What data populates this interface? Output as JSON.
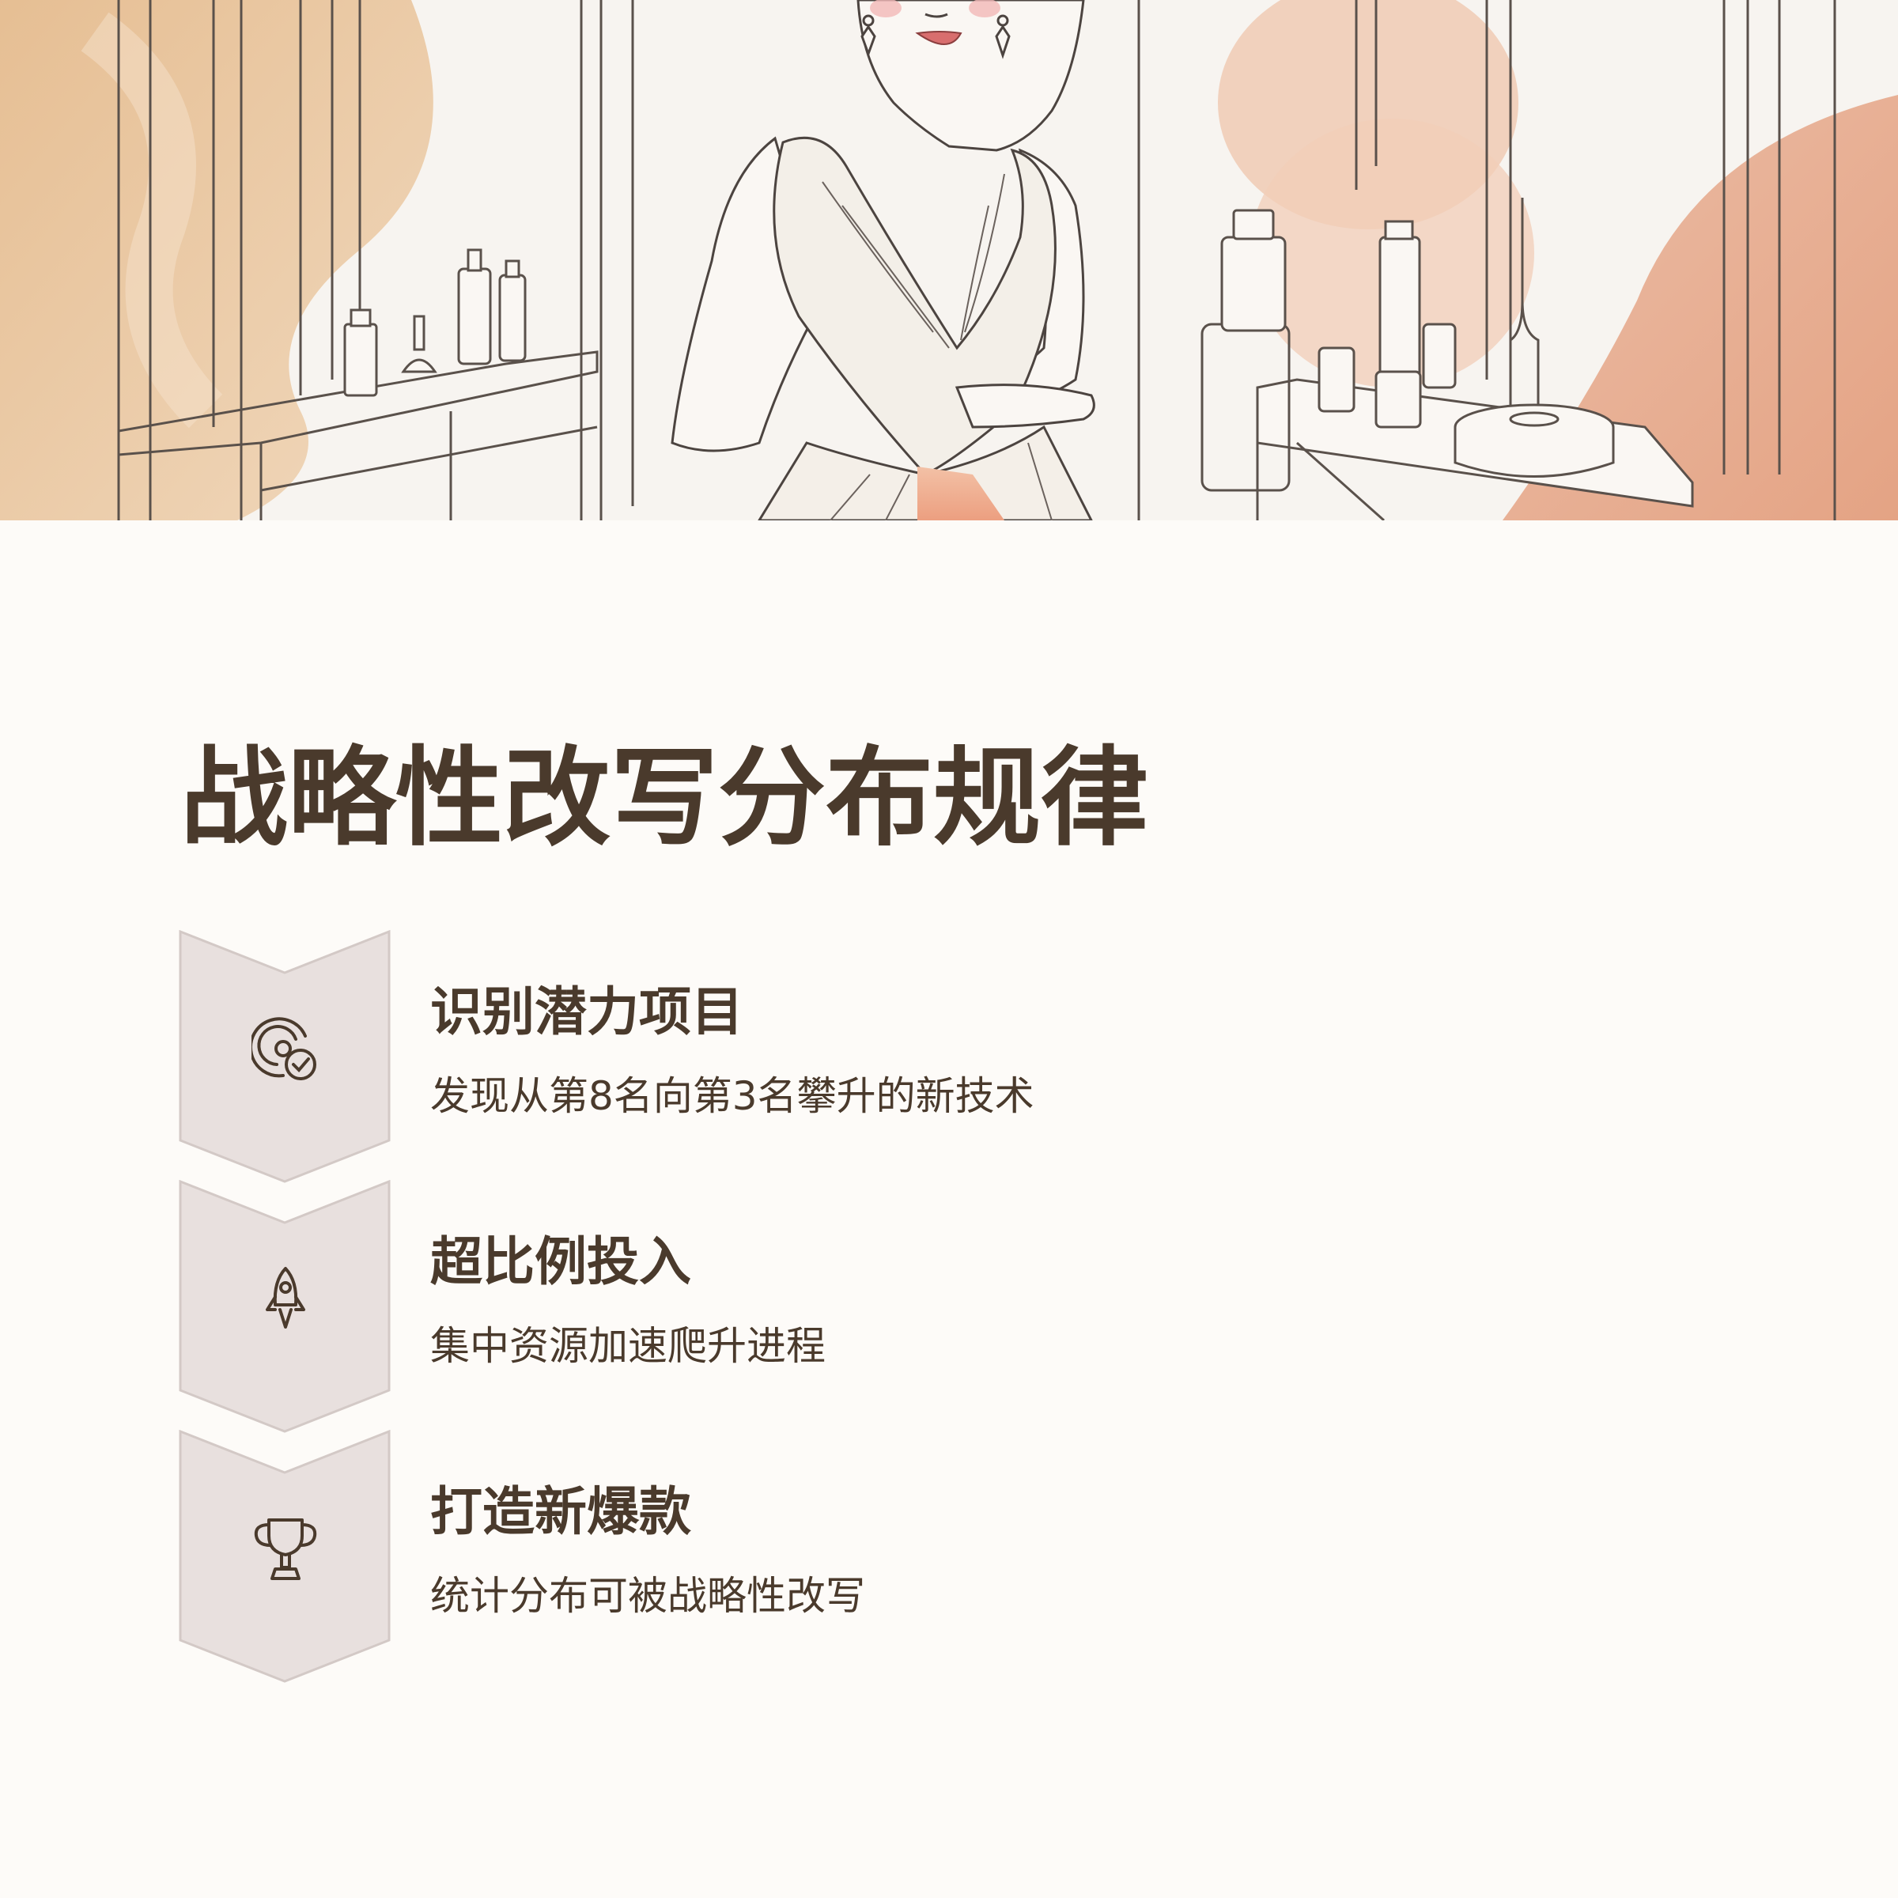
{
  "title": "战略性改写分布规律",
  "steps": [
    {
      "title": "识别潜力项目",
      "description": "发现从第8名向第3名攀升的新技术",
      "icon": "target-check-icon"
    },
    {
      "title": "超比例投入",
      "description": "集中资源加速爬升进程",
      "icon": "rocket-icon"
    },
    {
      "title": "打造新爆款",
      "description": "统计分布可被战略性改写",
      "icon": "trophy-icon"
    }
  ],
  "colors": {
    "background": "#fdfbf8",
    "text": "#4a3a2c",
    "chevron_fill": "#e8e0de",
    "chevron_stroke": "#d3c9c6",
    "accent_peach": "#e8a98a",
    "accent_tan": "#e2b88c"
  }
}
